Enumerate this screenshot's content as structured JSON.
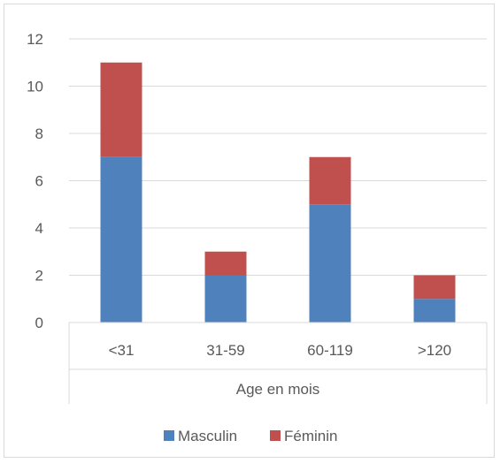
{
  "chart_data": {
    "type": "bar",
    "stacked": true,
    "categories": [
      "<31",
      "31-59",
      "60-119",
      ">120"
    ],
    "series": [
      {
        "name": "Masculin",
        "values": [
          7,
          2,
          5,
          1
        ],
        "color": "#4F81BD"
      },
      {
        "name": "Féminin",
        "values": [
          4,
          1,
          2,
          1
        ],
        "color": "#C0504D"
      }
    ],
    "title": "",
    "xlabel": "Age en mois",
    "ylabel": "",
    "ylim": [
      0,
      12
    ],
    "yticks": [
      "0",
      "2",
      "4",
      "6",
      "8",
      "10",
      "12"
    ],
    "grid": true,
    "legend": "bottom"
  }
}
